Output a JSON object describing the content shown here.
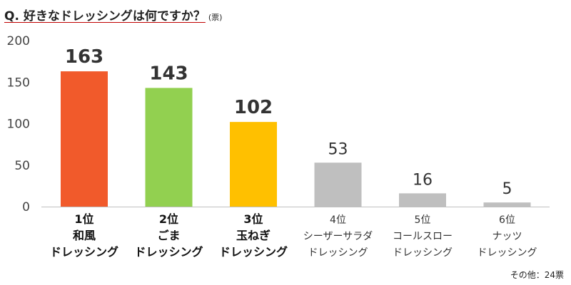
{
  "header": {
    "question": "Q. 好きなドレッシングは何ですか？",
    "unit": "(票)"
  },
  "chart_data": {
    "type": "bar",
    "title": "Q. 好きなドレッシングは何ですか？",
    "ylim": [
      0,
      200
    ],
    "yticks": [
      0,
      50,
      100,
      150,
      200
    ],
    "grid": false,
    "categories": [
      [
        "1位",
        "和風",
        "ドレッシング"
      ],
      [
        "2位",
        "ごま",
        "ドレッシング"
      ],
      [
        "3位",
        "玉ねぎ",
        "ドレッシング"
      ],
      [
        "4位",
        "シーザーサラダ",
        "ドレッシング"
      ],
      [
        "5位",
        "コールスロー",
        "ドレッシング"
      ],
      [
        "6位",
        "ナッツ",
        "ドレッシング"
      ]
    ],
    "values": [
      163,
      143,
      102,
      53,
      16,
      5
    ],
    "colors": [
      "#f15a2b",
      "#92d050",
      "#ffc000",
      "#bfbfbf",
      "#bfbfbf",
      "#bfbfbf"
    ],
    "highlight_top": 3
  },
  "footnote": "その他：24票"
}
